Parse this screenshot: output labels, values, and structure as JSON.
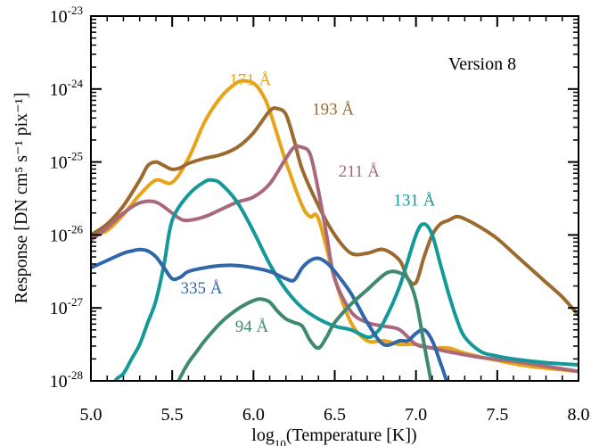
{
  "chart_data": {
    "type": "line",
    "title": "",
    "annotation_version": "Version 8",
    "xlabel": {
      "prefix": "log",
      "sub": "10",
      "rest": "(Temperature [K])"
    },
    "ylabel": "Response [DN cm⁵ s⁻¹ pix⁻¹]",
    "xlim": [
      5.0,
      8.0
    ],
    "ylim_log10": [
      -28,
      -23
    ],
    "yscale": "log",
    "grid": false,
    "xticks": [
      {
        "value": 5.0,
        "label": "5.0"
      },
      {
        "value": 5.5,
        "label": "5.5"
      },
      {
        "value": 6.0,
        "label": "6.0"
      },
      {
        "value": 6.5,
        "label": "6.5"
      },
      {
        "value": 7.0,
        "label": "7.0"
      },
      {
        "value": 7.5,
        "label": "7.5"
      },
      {
        "value": 8.0,
        "label": "8.0"
      }
    ],
    "yticks": [
      {
        "exp": -28,
        "base": "10",
        "sup": "-28"
      },
      {
        "exp": -27,
        "base": "10",
        "sup": "-27"
      },
      {
        "exp": -26,
        "base": "10",
        "sup": "-26"
      },
      {
        "exp": -25,
        "base": "10",
        "sup": "-25"
      },
      {
        "exp": -24,
        "base": "10",
        "sup": "-24"
      },
      {
        "exp": -23,
        "base": "10",
        "sup": "-23"
      }
    ],
    "series": [
      {
        "name": "171 Å",
        "color": "#E8A317",
        "label_at": [
          5.98,
          -23.95
        ],
        "x": [
          5.0,
          5.1,
          5.2,
          5.3,
          5.4,
          5.5,
          5.6,
          5.7,
          5.8,
          5.9,
          5.95,
          6.0,
          6.05,
          6.1,
          6.2,
          6.3,
          6.35,
          6.4,
          6.5,
          6.6,
          6.7,
          6.8,
          6.9,
          7.0,
          7.1,
          7.2,
          7.3,
          7.5,
          7.7,
          8.0
        ],
        "y": [
          -26.02,
          -25.94,
          -25.72,
          -25.45,
          -25.25,
          -25.28,
          -24.95,
          -24.45,
          -24.11,
          -23.91,
          -23.89,
          -23.92,
          -24.05,
          -24.3,
          -25.0,
          -25.6,
          -25.75,
          -25.78,
          -26.6,
          -27.2,
          -27.45,
          -27.45,
          -27.5,
          -27.5,
          -27.55,
          -27.55,
          -27.62,
          -27.72,
          -27.8,
          -27.87
        ]
      },
      {
        "name": "193 Å",
        "color": "#9C6A2E",
        "label_at": [
          6.49,
          -24.35
        ],
        "x": [
          5.0,
          5.1,
          5.2,
          5.3,
          5.35,
          5.4,
          5.45,
          5.5,
          5.55,
          5.6,
          5.7,
          5.8,
          5.9,
          6.0,
          6.1,
          6.15,
          6.2,
          6.25,
          6.3,
          6.4,
          6.5,
          6.6,
          6.7,
          6.8,
          6.9,
          6.95,
          7.0,
          7.05,
          7.1,
          7.15,
          7.2,
          7.25,
          7.3,
          7.4,
          7.5,
          7.6,
          7.7,
          7.8,
          7.9,
          8.0
        ],
        "y": [
          -26.0,
          -25.85,
          -25.6,
          -25.25,
          -25.05,
          -25.0,
          -25.05,
          -25.1,
          -25.08,
          -25.02,
          -24.95,
          -24.9,
          -24.8,
          -24.6,
          -24.3,
          -24.27,
          -24.35,
          -24.7,
          -25.1,
          -25.6,
          -26.0,
          -26.25,
          -26.25,
          -26.2,
          -26.35,
          -26.6,
          -26.65,
          -26.3,
          -26.0,
          -25.85,
          -25.8,
          -25.75,
          -25.78,
          -25.9,
          -26.05,
          -26.25,
          -26.45,
          -26.65,
          -26.85,
          -27.1
        ]
      },
      {
        "name": "211 Å",
        "color": "#A8697C",
        "label_at": [
          6.65,
          -25.2
        ],
        "x": [
          5.0,
          5.1,
          5.2,
          5.3,
          5.4,
          5.5,
          5.55,
          5.6,
          5.7,
          5.8,
          5.9,
          6.0,
          6.1,
          6.2,
          6.25,
          6.3,
          6.35,
          6.4,
          6.45,
          6.5,
          6.6,
          6.7,
          6.8,
          6.9,
          7.0,
          7.1,
          7.2,
          7.4,
          7.6,
          7.8,
          8.0
        ],
        "y": [
          -26.07,
          -25.9,
          -25.7,
          -25.56,
          -25.55,
          -25.7,
          -25.78,
          -25.8,
          -25.75,
          -25.65,
          -25.55,
          -25.48,
          -25.3,
          -24.95,
          -24.8,
          -24.8,
          -24.9,
          -25.4,
          -26.0,
          -26.6,
          -27.05,
          -27.2,
          -27.25,
          -27.3,
          -27.5,
          -27.55,
          -27.6,
          -27.68,
          -27.73,
          -27.8,
          -27.87
        ]
      },
      {
        "name": "131 Å",
        "color": "#14999A",
        "label_at": [
          6.99,
          -25.6
        ],
        "x": [
          5.0,
          5.1,
          5.15,
          5.2,
          5.25,
          5.3,
          5.35,
          5.4,
          5.45,
          5.5,
          5.6,
          5.7,
          5.75,
          5.8,
          5.9,
          6.0,
          6.1,
          6.2,
          6.3,
          6.4,
          6.5,
          6.6,
          6.7,
          6.75,
          6.8,
          6.9,
          7.0,
          7.05,
          7.1,
          7.15,
          7.2,
          7.25,
          7.3,
          7.4,
          7.5,
          7.6,
          7.8,
          8.0
        ],
        "y": [
          -28.7,
          -28.3,
          -28.0,
          -27.9,
          -27.7,
          -27.5,
          -27.2,
          -26.9,
          -26.4,
          -25.8,
          -25.45,
          -25.27,
          -25.25,
          -25.3,
          -25.55,
          -25.95,
          -26.4,
          -26.75,
          -27.0,
          -27.15,
          -27.25,
          -27.3,
          -27.4,
          -27.35,
          -27.2,
          -26.7,
          -26.0,
          -25.85,
          -26.0,
          -26.4,
          -26.8,
          -27.15,
          -27.4,
          -27.6,
          -27.66,
          -27.7,
          -27.75,
          -27.78
        ]
      },
      {
        "name": "335 Å",
        "color": "#2F67A8",
        "label_at": [
          5.68,
          -26.8
        ],
        "x": [
          5.0,
          5.1,
          5.2,
          5.25,
          5.3,
          5.35,
          5.4,
          5.45,
          5.5,
          5.55,
          5.6,
          5.7,
          5.8,
          5.9,
          6.0,
          6.1,
          6.15,
          6.2,
          6.25,
          6.3,
          6.35,
          6.4,
          6.45,
          6.5,
          6.6,
          6.7,
          6.8,
          6.9,
          6.95,
          7.0,
          7.05,
          7.1,
          7.15,
          7.2,
          7.3
        ],
        "y": [
          -26.45,
          -26.35,
          -26.25,
          -26.22,
          -26.2,
          -26.22,
          -26.3,
          -26.45,
          -26.6,
          -26.58,
          -26.5,
          -26.45,
          -26.42,
          -26.42,
          -26.45,
          -26.5,
          -26.55,
          -26.6,
          -26.62,
          -26.45,
          -26.35,
          -26.32,
          -26.38,
          -26.5,
          -26.8,
          -27.2,
          -27.5,
          -27.45,
          -27.45,
          -27.35,
          -27.3,
          -27.45,
          -27.75,
          -28.1,
          -29.0
        ]
      },
      {
        "name": "94 Å",
        "color": "#3F8A6E",
        "label_at": [
          5.99,
          -27.33
        ],
        "x": [
          5.5,
          5.55,
          5.6,
          5.65,
          5.7,
          5.8,
          5.9,
          6.0,
          6.05,
          6.1,
          6.15,
          6.2,
          6.25,
          6.3,
          6.35,
          6.4,
          6.45,
          6.5,
          6.6,
          6.7,
          6.8,
          6.85,
          6.9,
          6.95,
          7.0,
          7.05,
          7.1,
          7.15
        ],
        "y": [
          -28.2,
          -27.95,
          -27.75,
          -27.6,
          -27.45,
          -27.2,
          -27.02,
          -26.9,
          -26.88,
          -26.92,
          -27.05,
          -27.15,
          -27.2,
          -27.25,
          -27.45,
          -27.55,
          -27.4,
          -27.2,
          -26.95,
          -26.75,
          -26.55,
          -26.5,
          -26.52,
          -26.6,
          -26.9,
          -27.5,
          -28.1,
          -28.8
        ]
      }
    ]
  }
}
